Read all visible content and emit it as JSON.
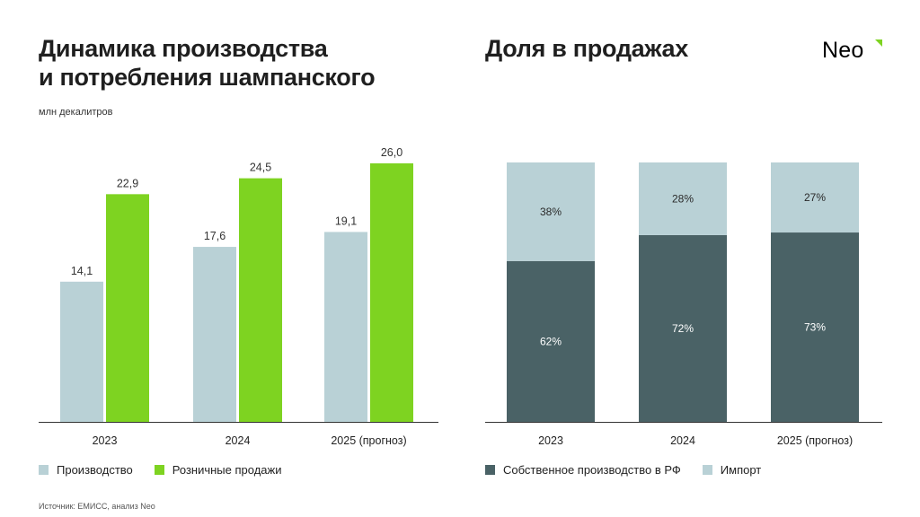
{
  "header": {
    "left_title": "Динамика производства и потребления шампанского",
    "left_title_line1": "Динамика производства",
    "left_title_line2": "и потребления шампанского",
    "units": "млн декалитров",
    "right_title": "Доля в продажах",
    "logo": "Neo"
  },
  "colors": {
    "production": "#b9d1d6",
    "retail": "#7ed321",
    "domestic": "#4a6266",
    "import": "#b9d1d6",
    "logo_accent": "#7ed321"
  },
  "chart_data": [
    {
      "type": "bar",
      "title": "Динамика производства и потребления шампанского",
      "ylabel": "млн декалитров",
      "categories": [
        "2023",
        "2024",
        "2025 (прогноз)"
      ],
      "series": [
        {
          "name": "Производство",
          "values": [
            14.1,
            17.6,
            19.1
          ],
          "labels": [
            "14,1",
            "17,6",
            "19,1"
          ]
        },
        {
          "name": "Розничные продажи",
          "values": [
            22.9,
            24.5,
            26.0
          ],
          "labels": [
            "22,9",
            "24,5",
            "26,0"
          ]
        }
      ],
      "ylim": [
        0,
        26.0
      ],
      "grid": false,
      "legend": "bottom-left"
    },
    {
      "type": "bar",
      "stacked": true,
      "title": "Доля в продажах",
      "categories": [
        "2023",
        "2024",
        "2025 (прогноз)"
      ],
      "series": [
        {
          "name": "Собственное производство в РФ",
          "values": [
            62,
            72,
            73
          ],
          "labels": [
            "62%",
            "72%",
            "73%"
          ]
        },
        {
          "name": "Импорт",
          "values": [
            38,
            28,
            27
          ],
          "labels": [
            "38%",
            "28%",
            "27%"
          ]
        }
      ],
      "ylim": [
        0,
        100
      ],
      "grid": false,
      "legend": "bottom-left"
    }
  ],
  "legend_left": [
    {
      "label": "Производство",
      "color_key": "production"
    },
    {
      "label": "Розничные продажи",
      "color_key": "retail"
    }
  ],
  "legend_right": [
    {
      "label": "Собственное производство в РФ",
      "color_key": "domestic"
    },
    {
      "label": "Импорт",
      "color_key": "import"
    }
  ],
  "footer": {
    "source": "Источник: ЕМИСС, анализ Neo"
  }
}
